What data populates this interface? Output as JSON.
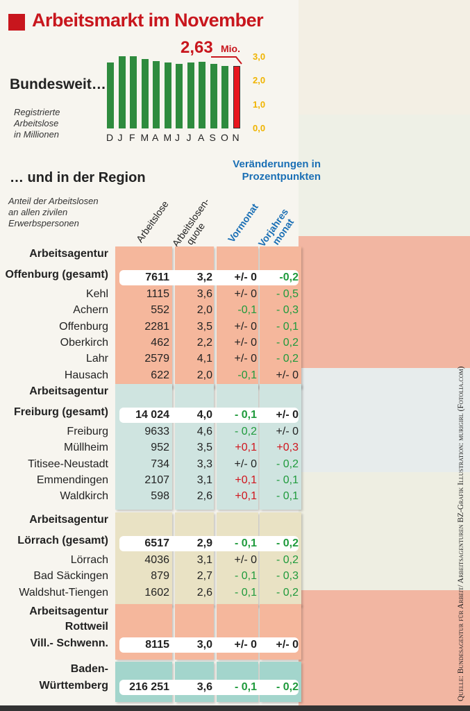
{
  "title": "Arbeitsmarkt im November",
  "national": {
    "label": "Bundesweit…",
    "note": [
      "Registrierte",
      "Arbeitslose",
      "in Millionen"
    ],
    "callout_value": "2,63",
    "callout_unit": "Mio."
  },
  "chart_data": {
    "type": "bar",
    "categories": [
      "D",
      "J",
      "F",
      "M",
      "A",
      "M",
      "J",
      "J",
      "A",
      "S",
      "O",
      "N"
    ],
    "values": [
      2.77,
      3.03,
      3.03,
      2.92,
      2.83,
      2.77,
      2.71,
      2.77,
      2.8,
      2.71,
      2.61,
      2.63
    ],
    "ylim": [
      0,
      3.0
    ],
    "yticks": [
      "0,0",
      "1,0",
      "2,0",
      "3,0"
    ],
    "highlight_color": "#e8161d",
    "bar_color": "#2e8b3e",
    "tick_color": "#f0b400"
  },
  "region": {
    "label": "… und in der Region",
    "note": [
      "Anteil der Arbeitslosen",
      "an allen zivilen",
      "Erwerbspersonen"
    ],
    "changes_header": [
      "Veränderungen in",
      "Prozentpunkten"
    ],
    "columns": [
      "Arbeitslose",
      "Arbeitslosen-",
      "quote",
      "Vormonat",
      "Vorjahres",
      "monat"
    ]
  },
  "sections": [
    {
      "header": [
        "Arbeitsagentur",
        "Offenburg (gesamt)"
      ],
      "color": "#f5b79c",
      "total": [
        "7611",
        "3,2",
        "+/- 0",
        "-0,2"
      ],
      "rows": [
        [
          "Kehl",
          "1115",
          "3,6",
          "+/- 0",
          "- 0,5"
        ],
        [
          "Achern",
          "552",
          "2,0",
          "-0,1",
          "- 0,3"
        ],
        [
          "Offenburg",
          "2281",
          "3,5",
          "+/- 0",
          "- 0,1"
        ],
        [
          "Oberkirch",
          "462",
          "2,2",
          "+/- 0",
          "- 0,2"
        ],
        [
          "Lahr",
          "2579",
          "4,1",
          "+/- 0",
          "- 0,2"
        ],
        [
          "Hausach",
          "622",
          "2,0",
          "-0,1",
          "+/- 0"
        ]
      ]
    },
    {
      "header": [
        "Arbeitsagentur",
        "Freiburg (gesamt)"
      ],
      "color": "#cfe4e0",
      "total": [
        "14 024",
        "4,0",
        "- 0,1",
        "+/- 0"
      ],
      "rows": [
        [
          "Freiburg",
          "9633",
          "4,6",
          "- 0,2",
          "+/- 0"
        ],
        [
          "Müllheim",
          "952",
          "3,5",
          "+0,1",
          "+0,3"
        ],
        [
          "Titisee-Neustadt",
          "734",
          "3,3",
          "+/- 0",
          "- 0,2"
        ],
        [
          "Emmendingen",
          "2107",
          "3,1",
          "+0,1",
          "- 0,1"
        ],
        [
          "Waldkirch",
          "598",
          "2,6",
          "+0,1",
          "- 0,1"
        ]
      ]
    },
    {
      "header": [
        "Arbeitsagentur",
        "Lörrach (gesamt)"
      ],
      "color": "#e9e2c4",
      "total": [
        "6517",
        "2,9",
        "- 0,1",
        "- 0,2"
      ],
      "rows": [
        [
          "Lörrach",
          "4036",
          "3,1",
          "+/- 0",
          "- 0,2"
        ],
        [
          "Bad Säckingen",
          "879",
          "2,7",
          "- 0,1",
          "- 0,3"
        ],
        [
          "Waldshut-Tiengen",
          "1602",
          "2,6",
          "- 0,1",
          "- 0,2"
        ]
      ]
    },
    {
      "header": [
        "Arbeitsagentur",
        "Rottweil",
        "Vill.- Schwenn."
      ],
      "color": "#f5b79c",
      "total": [
        "8115",
        "3,0",
        "+/- 0",
        "+/- 0"
      ],
      "rows": []
    },
    {
      "header": [
        "Baden-",
        "Württemberg"
      ],
      "color": "#a3d5cc",
      "total": [
        "216 251",
        "3,6",
        "- 0,1",
        "- 0,2"
      ],
      "rows": []
    }
  ],
  "credit": "Quelle: Bundesagentur für Arbeit/ Arbeitsagenturen   BZ-Grafik   Illustration: murigirl (Fotolia.com)"
}
